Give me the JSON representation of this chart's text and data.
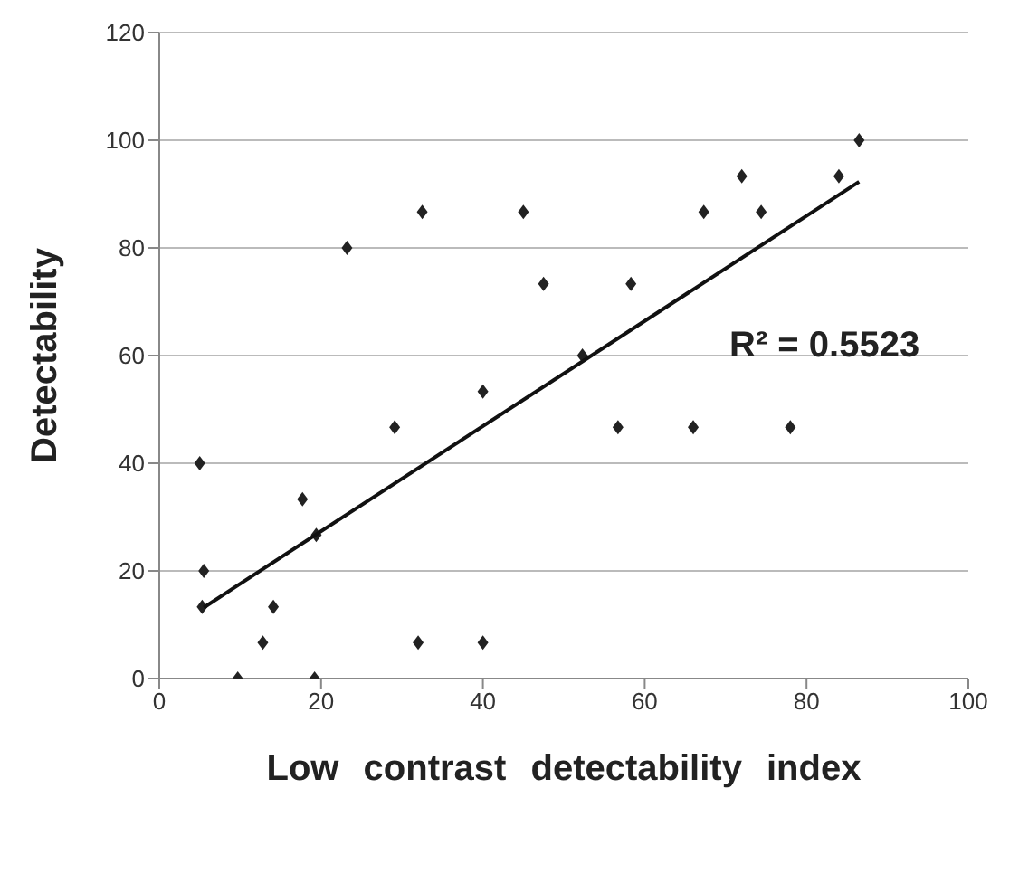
{
  "chart_data": {
    "type": "scatter",
    "xlabel": "Low contrast detectability index",
    "ylabel": "Detectability",
    "xlim": [
      0,
      100
    ],
    "xticks": [
      0,
      20,
      40,
      60,
      80,
      100
    ],
    "ylim": [
      0,
      120
    ],
    "yticks": [
      0,
      20,
      40,
      60,
      80,
      100,
      120
    ],
    "grid": "y",
    "annotations": [
      "R² = 0.5523"
    ],
    "series": [
      {
        "type": "scatter",
        "color": "#222222",
        "marker": "diamond",
        "x": [
          5,
          5.5,
          5.3,
          9.7,
          12.8,
          14.1,
          17.7,
          19.2,
          19.4,
          23.2,
          29.1,
          32,
          32.5,
          40,
          40,
          45,
          47.5,
          52.3,
          56.7,
          58.3,
          66,
          67.3,
          72,
          74.4,
          78,
          84,
          86.5
        ],
        "values": [
          40,
          20,
          13.3,
          0,
          6.7,
          13.3,
          33.3,
          0,
          26.7,
          80,
          46.7,
          6.7,
          86.7,
          53.3,
          6.7,
          86.7,
          73.3,
          60,
          46.7,
          73.3,
          46.7,
          86.7,
          93.3,
          86.7,
          46.7,
          93.3,
          100
        ]
      },
      {
        "type": "line",
        "color": "#111111",
        "marker": "none",
        "x": [
          5.5,
          86.5
        ],
        "values": [
          13.2,
          92.3
        ]
      }
    ]
  }
}
